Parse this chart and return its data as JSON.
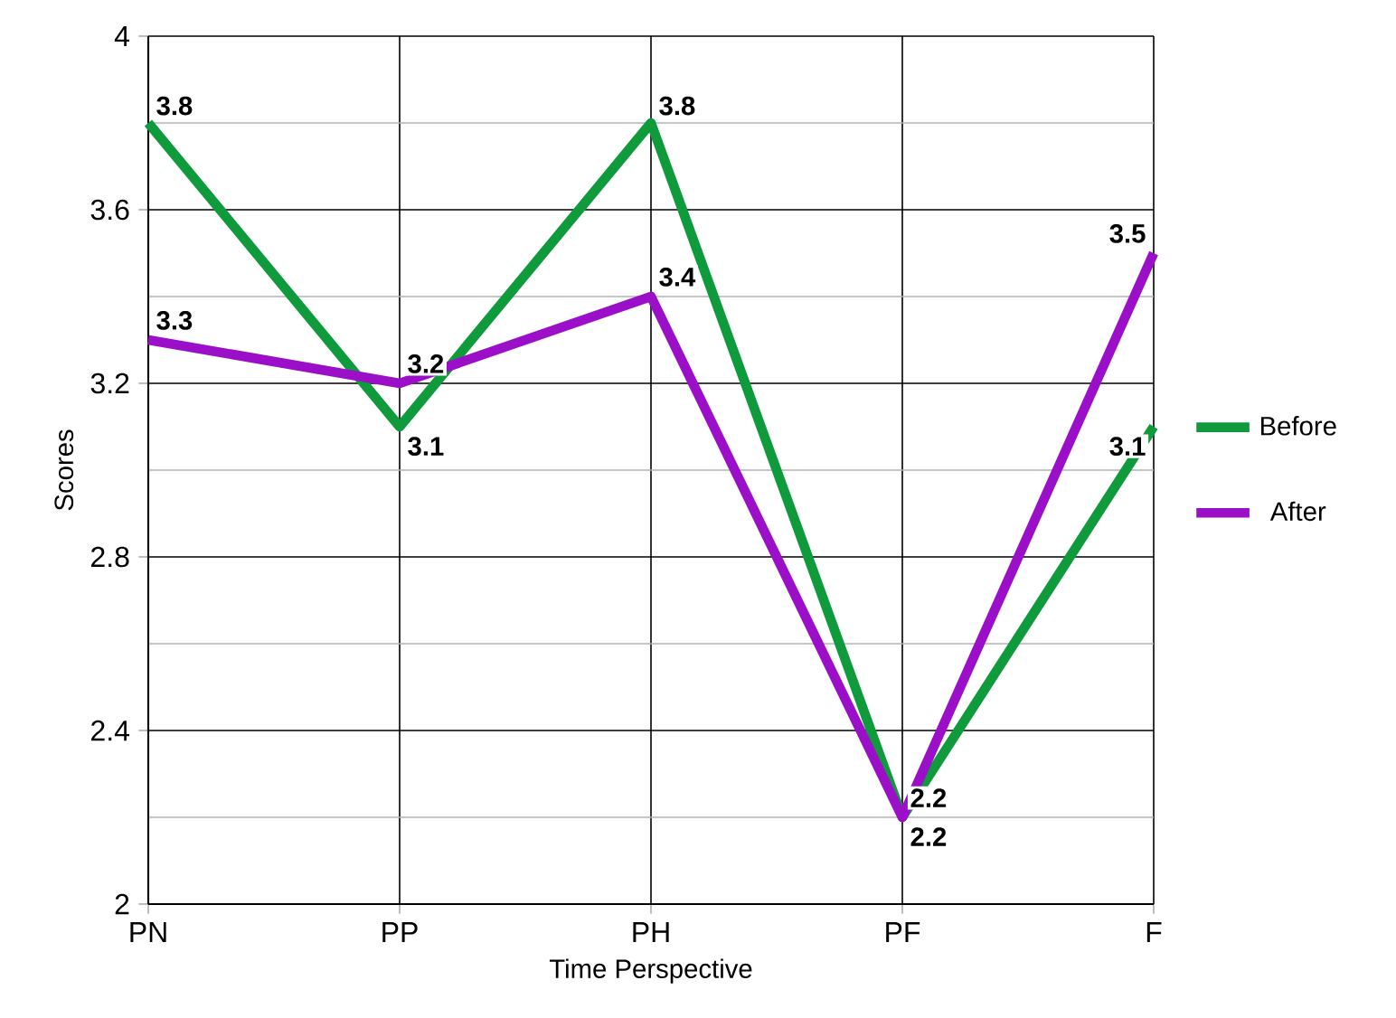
{
  "chart_data": {
    "type": "line",
    "xlabel": "Time Perspective",
    "ylabel": "Scores",
    "categories": [
      "PN",
      "PP",
      "PH",
      "PF",
      "F"
    ],
    "series": [
      {
        "name": "Before",
        "color": "#0f9a3c",
        "values": [
          3.8,
          3.1,
          3.8,
          2.2,
          3.1
        ]
      },
      {
        "name": "After",
        "color": "#9b0fc8",
        "values": [
          3.3,
          3.2,
          3.4,
          2.2,
          3.5
        ]
      }
    ],
    "ylim": [
      2,
      4
    ],
    "yticks": [
      2,
      2.4,
      2.8,
      3.2,
      3.6,
      4
    ],
    "grid": true,
    "legend": "right",
    "data_labels": true,
    "marker": "none",
    "line_style": "solid"
  }
}
